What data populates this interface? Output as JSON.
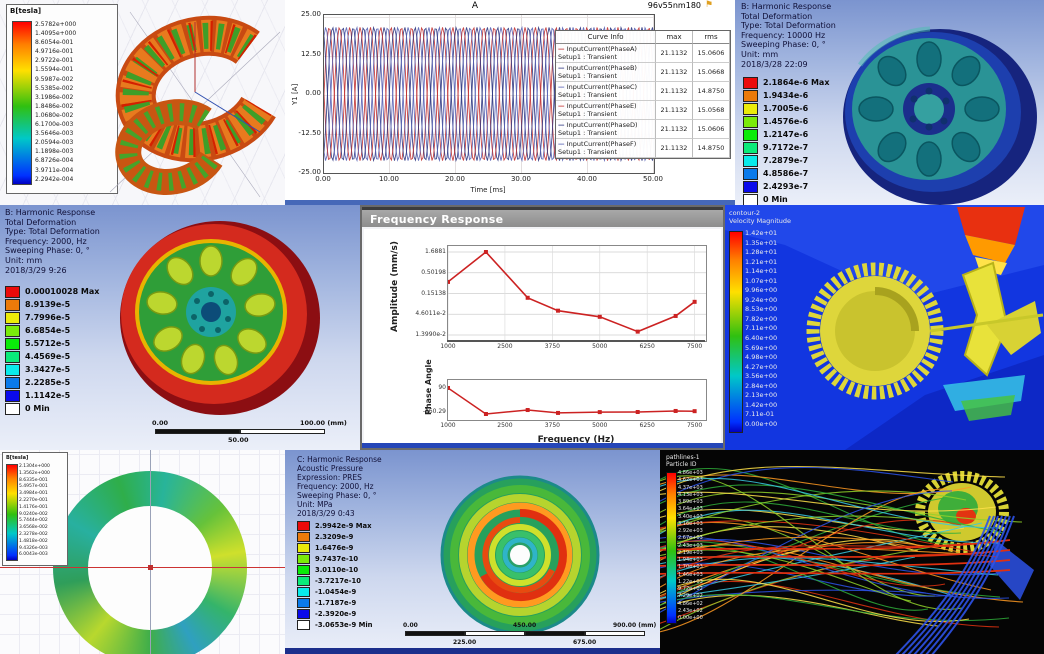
{
  "colors": {
    "ansys_bg_top": "#7b94cf",
    "ansys_bg_bottom": "#ebeff9",
    "cfd_blue": "#1236e0",
    "line_red": "#cc2222",
    "gear_yellow": "#ded63b",
    "rim_red": "#c0181c",
    "wheel_teal": "#2a9396",
    "wheel_navy": "#16247e"
  },
  "panels": {
    "maxwell_torus": {
      "legend_title": "B[tesla]",
      "legend_values": [
        "2.5782e+000",
        "1.4095e+000",
        "8.6054e-001",
        "4.9716e-001",
        "2.9722e-001",
        "1.5594e-001",
        "9.5987e-002",
        "5.5385e-002",
        "3.1986e-002",
        "1.8486e-002",
        "1.0680e-002",
        "6.1700e-003",
        "3.5646e-003",
        "2.0594e-003",
        "1.1898e-003",
        "6.8726e-004",
        "3.9711e-004",
        "2.2942e-004"
      ]
    },
    "transient_plot": {
      "title": "A",
      "model": "96v55nm180",
      "flag_icon": "⚑",
      "ylabel": "Y1 [A]",
      "xlabel": "Time [ms]",
      "yticks": [
        "25.00",
        "12.50",
        "0.00",
        "-12.50",
        "-25.00"
      ],
      "xticks": [
        "0.00",
        "10.00",
        "20.00",
        "30.00",
        "40.00",
        "50.00"
      ],
      "legend_headers": [
        "Curve Info",
        "max",
        "rms"
      ],
      "legend_rows": [
        {
          "name": "InputCurrent(PhaseA)",
          "setup": "Setup1 : Transient",
          "max": "21.1132",
          "rms": "15.0606",
          "color": "#c03030"
        },
        {
          "name": "InputCurrent(PhaseB)",
          "setup": "Setup1 : Transient",
          "max": "21.1132",
          "rms": "15.0668",
          "color": "#2c3580"
        },
        {
          "name": "InputCurrent(PhaseC)",
          "setup": "Setup1 : Transient",
          "max": "21.1132",
          "rms": "14.8750",
          "color": "#5560b4"
        },
        {
          "name": "InputCurrent(PhaseE)",
          "setup": "Setup1 : Transient",
          "max": "21.1132",
          "rms": "15.0568",
          "color": "#c03030"
        },
        {
          "name": "InputCurrent(PhaseD)",
          "setup": "Setup1 : Transient",
          "max": "21.1132",
          "rms": "15.0606",
          "color": "#2c3580"
        },
        {
          "name": "InputCurrent(PhaseF)",
          "setup": "Setup1 : Transient",
          "max": "21.1132",
          "rms": "14.8750",
          "color": "#5560b4"
        }
      ]
    },
    "harmonic_10000": {
      "info": [
        "B: Harmonic Response",
        "Total Deformation",
        "Type: Total Deformation",
        "Frequency: 10000 Hz",
        "Sweeping Phase: 0, °",
        "Unit: mm",
        "2018/3/28 22:09"
      ],
      "legend": [
        "2.1864e-6 Max",
        "1.9434e-6",
        "1.7005e-6",
        "1.4576e-6",
        "1.2147e-6",
        "9.7172e-7",
        "7.2879e-7",
        "4.8586e-7",
        "2.4293e-7",
        "0 Min"
      ]
    },
    "harmonic_2000": {
      "info": [
        "B: Harmonic Response",
        "Total Deformation",
        "Type: Total Deformation",
        "Frequency: 2000, Hz",
        "Sweeping Phase: 0, °",
        "Unit: mm",
        "2018/3/29 9:26"
      ],
      "legend": [
        "0.00010028 Max",
        "8.9139e-5",
        "7.7996e-5",
        "6.6854e-5",
        "5.5712e-5",
        "4.4569e-5",
        "3.3427e-5",
        "2.2285e-5",
        "1.1142e-5",
        "0 Min"
      ],
      "scale": {
        "left": "0.00",
        "right": "100.00 (mm)",
        "mid": "50.00"
      }
    },
    "freq_response": {
      "title": "Frequency Response",
      "amplitude": {
        "ylabel": "Amplitude (mm/s)",
        "yticks": [
          "1.6881",
          "0.50198",
          "0.15138",
          "4.6011e-2",
          "1.3990e-2"
        ],
        "xticks": [
          "1000",
          "2500",
          "3750",
          "5000",
          "6250",
          "7500"
        ]
      },
      "phase": {
        "ylabel": "Phase Angle",
        "yticks": [
          "90",
          "-160.29"
        ],
        "xticks": [
          "1000",
          "2500",
          "3750",
          "5000",
          "6250",
          "7500"
        ],
        "xlabel": "Frequency (Hz)"
      }
    },
    "cfd_contour": {
      "title_lines": [
        "contour-2",
        "Velocity Magnitude"
      ],
      "values": [
        "1.42e+01",
        "1.35e+01",
        "1.28e+01",
        "1.21e+01",
        "1.14e+01",
        "1.07e+01",
        "9.96e+00",
        "9.24e+00",
        "8.53e+00",
        "7.82e+00",
        "7.11e+00",
        "6.40e+00",
        "5.69e+00",
        "4.98e+00",
        "4.27e+00",
        "3.56e+00",
        "2.84e+00",
        "2.13e+00",
        "1.42e+00",
        "7.11e-01",
        "0.00e+00"
      ]
    },
    "maxwell_ring": {
      "legend_title": "B[tesla]",
      "legend_values": [
        "2.1304e+000",
        "1.3562e+000",
        "8.6335e-001",
        "5.4957e-001",
        "3.4984e-001",
        "2.2270e-001",
        "1.4176e-001",
        "9.0240e-002",
        "5.7444e-002",
        "3.6568e-002",
        "2.3278e-002",
        "1.4818e-002",
        "9.4326e-003",
        "6.0043e-003"
      ]
    },
    "acoustic": {
      "info": [
        "C: Harmonic Response",
        "Acoustic Pressure",
        "Expression: PRES",
        "Frequency: 2000, Hz",
        "Sweeping Phase: 0, °",
        "Unit: MPa",
        "2018/3/29 0:43"
      ],
      "legend": [
        "2.9942e-9 Max",
        "2.3209e-9",
        "1.6476e-9",
        "9.7437e-10",
        "3.0110e-10",
        "-3.7217e-10",
        "-1.0454e-9",
        "-1.7187e-9",
        "-2.3920e-9",
        "-3.0653e-9 Min"
      ],
      "scale": {
        "left": "0.00",
        "mid": "450.00",
        "right": "900.00 (mm)",
        "sub_left": "225.00",
        "sub_right": "675.00"
      }
    },
    "pathlines": {
      "title_lines": [
        "pathlines-1",
        "Particle ID"
      ],
      "values": [
        "4.86e+03",
        "4.62e+03",
        "4.37e+03",
        "4.13e+03",
        "3.89e+03",
        "3.64e+03",
        "3.40e+03",
        "3.16e+03",
        "2.92e+03",
        "2.67e+03",
        "2.43e+03",
        "2.19e+03",
        "1.94e+03",
        "1.70e+03",
        "1.46e+03",
        "1.22e+03",
        "9.72e+02",
        "7.29e+02",
        "4.86e+02",
        "2.43e+02",
        "0.00e+00"
      ],
      "palette": [
        "#2fae3a",
        "#8fd12a",
        "#ffe24a",
        "#ff9a22",
        "#e23311",
        "#39c8e0",
        "#2d52e8"
      ]
    }
  },
  "chart_data": [
    {
      "type": "line",
      "title": "A",
      "subtitle": "96v55nm180",
      "xlabel": "Time [ms]",
      "ylabel": "Y1 [A]",
      "xlim": [
        0,
        50
      ],
      "ylim": [
        -25,
        25
      ],
      "amplitude": 21.1132,
      "period_ms": 3.125,
      "series": [
        {
          "name": "InputCurrent(PhaseA)",
          "phase_deg": 0,
          "color": "#c03030",
          "max": 21.1132,
          "rms": 15.0606
        },
        {
          "name": "InputCurrent(PhaseB)",
          "phase_deg": 120,
          "color": "#2c3580",
          "max": 21.1132,
          "rms": 15.0668
        },
        {
          "name": "InputCurrent(PhaseC)",
          "phase_deg": 240,
          "color": "#5560b4",
          "max": 21.1132,
          "rms": 14.875
        },
        {
          "name": "InputCurrent(PhaseE)",
          "phase_deg": 180,
          "color": "#c03030",
          "max": 21.1132,
          "rms": 15.0568
        },
        {
          "name": "InputCurrent(PhaseD)",
          "phase_deg": 300,
          "color": "#2c3580",
          "max": 21.1132,
          "rms": 15.0606
        },
        {
          "name": "InputCurrent(PhaseF)",
          "phase_deg": 60,
          "color": "#5560b4",
          "max": 21.1132,
          "rms": 14.875
        }
      ]
    },
    {
      "type": "line",
      "title": "Frequency Response - Amplitude",
      "xlabel": "Frequency (Hz)",
      "ylabel": "Amplitude (mm/s)",
      "yscale": "log",
      "x": [
        1000,
        2000,
        3100,
        3900,
        5000,
        6000,
        7000,
        7500
      ],
      "y": [
        0.3,
        1.6881,
        0.12,
        0.057,
        0.04,
        0.017,
        0.042,
        0.095
      ],
      "yticks": [
        1.6881,
        0.50198,
        0.15138,
        0.046011,
        0.01399
      ],
      "xticks": [
        1000,
        2500,
        3750,
        5000,
        6250,
        7500
      ],
      "color": "#cc2222"
    },
    {
      "type": "line",
      "title": "Frequency Response - Phase",
      "xlabel": "Frequency (Hz)",
      "ylabel": "Phase Angle",
      "x": [
        1000,
        2000,
        3100,
        3900,
        5000,
        6000,
        7000,
        7500
      ],
      "y": [
        90,
        -160.29,
        -122,
        -150,
        -142,
        -141,
        -131,
        -133
      ],
      "yticks": [
        90,
        -160.29
      ],
      "xticks": [
        1000,
        2500,
        3750,
        5000,
        6250,
        7500
      ],
      "color": "#cc2222"
    }
  ]
}
